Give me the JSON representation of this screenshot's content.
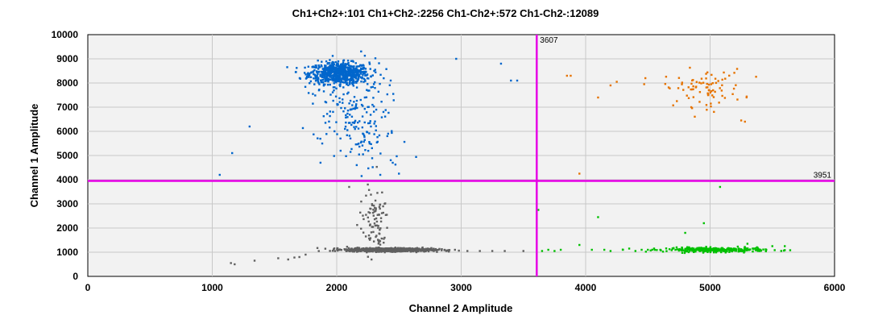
{
  "chart_data": {
    "type": "scatter",
    "title": "Ch1+Ch2+:101  Ch1+Ch2-:2256  Ch1-Ch2+:572  Ch1-Ch2-:12089",
    "xlabel": "Channel 2 Amplitude",
    "ylabel": "Channel 1 Amplitude",
    "xlim": [
      0,
      6000
    ],
    "ylim": [
      0,
      10000
    ],
    "x_ticks": [
      "0",
      "1000",
      "2000",
      "3000",
      "4000",
      "5000",
      "6000"
    ],
    "y_ticks": [
      "0",
      "1000",
      "2000",
      "3000",
      "4000",
      "5000",
      "6000",
      "7000",
      "8000",
      "9000",
      "10000"
    ],
    "grid": true,
    "thresholds": {
      "ch2_threshold": 3607,
      "ch2_label": "3607",
      "ch1_threshold": 3951,
      "ch1_label": "3951",
      "color": "#e600e6"
    },
    "series": [
      {
        "name": "Ch1+Ch2-",
        "count": 2256,
        "color": "#0066cc",
        "clusters": [
          {
            "cx": 2020,
            "cy": 8400,
            "sx": 120,
            "sy": 220,
            "n": 700
          },
          {
            "cx": 2100,
            "cy": 7200,
            "sx": 150,
            "sy": 900,
            "n": 160
          },
          {
            "cx": 2250,
            "cy": 5600,
            "sx": 170,
            "sy": 700,
            "n": 60
          }
        ],
        "points": [
          [
            1060,
            4200
          ],
          [
            1160,
            5100
          ],
          [
            1300,
            6200
          ],
          [
            2960,
            9000
          ],
          [
            3320,
            8800
          ],
          [
            3400,
            8100
          ],
          [
            3450,
            8100
          ],
          [
            2200,
            4150
          ],
          [
            2350,
            4200
          ],
          [
            2500,
            4250
          ],
          [
            2450,
            4700
          ]
        ]
      },
      {
        "name": "Ch1+Ch2+",
        "count": 101,
        "color": "#e67300",
        "clusters": [
          {
            "cx": 4950,
            "cy": 7800,
            "sx": 160,
            "sy": 380,
            "n": 85
          }
        ],
        "points": [
          [
            3850,
            8300
          ],
          [
            3880,
            8300
          ],
          [
            4100,
            7400
          ],
          [
            4200,
            7900
          ],
          [
            4250,
            8050
          ],
          [
            4480,
            8200
          ],
          [
            3950,
            4250
          ],
          [
            5250,
            6450
          ],
          [
            5280,
            6400
          ]
        ]
      },
      {
        "name": "Ch1-Ch2+",
        "count": 572,
        "color": "#00c000",
        "clusters": [
          {
            "cx": 5050,
            "cy": 1100,
            "sx": 200,
            "sy": 45,
            "n": 320
          }
        ],
        "points": [
          [
            3650,
            1050
          ],
          [
            3700,
            1100
          ],
          [
            3750,
            1050
          ],
          [
            3800,
            1100
          ],
          [
            3950,
            1300
          ],
          [
            4050,
            1100
          ],
          [
            4100,
            2450
          ],
          [
            4150,
            1100
          ],
          [
            4200,
            1050
          ],
          [
            4300,
            1100
          ],
          [
            4350,
            1150
          ],
          [
            4400,
            1050
          ],
          [
            4450,
            1100
          ],
          [
            4500,
            1100
          ],
          [
            4550,
            1150
          ],
          [
            4600,
            1100
          ],
          [
            4700,
            1150
          ],
          [
            4750,
            1100
          ],
          [
            4800,
            1800
          ],
          [
            4950,
            2200
          ],
          [
            5080,
            3700
          ],
          [
            5300,
            1350
          ],
          [
            5500,
            1250
          ],
          [
            5600,
            1250
          ],
          [
            3620,
            2750
          ]
        ]
      },
      {
        "name": "Ch1-Ch2-",
        "count": 12089,
        "color": "#606060",
        "clusters": [
          {
            "cx": 2420,
            "cy": 1100,
            "sx": 170,
            "sy": 35,
            "n": 900
          },
          {
            "cx": 2300,
            "cy": 2200,
            "sx": 60,
            "sy": 650,
            "n": 90
          }
        ],
        "points": [
          [
            1150,
            550
          ],
          [
            1180,
            500
          ],
          [
            1340,
            650
          ],
          [
            1530,
            750
          ],
          [
            1610,
            700
          ],
          [
            1660,
            780
          ],
          [
            1700,
            800
          ],
          [
            1750,
            900
          ],
          [
            2640,
            1000
          ],
          [
            2700,
            1050
          ],
          [
            2780,
            1050
          ],
          [
            2820,
            1100
          ],
          [
            2880,
            1050
          ],
          [
            2950,
            1100
          ],
          [
            3050,
            1050
          ],
          [
            3150,
            1050
          ],
          [
            3250,
            1050
          ],
          [
            3350,
            1050
          ],
          [
            3500,
            1050
          ],
          [
            2100,
            3700
          ],
          [
            2250,
            3800
          ]
        ]
      }
    ]
  }
}
